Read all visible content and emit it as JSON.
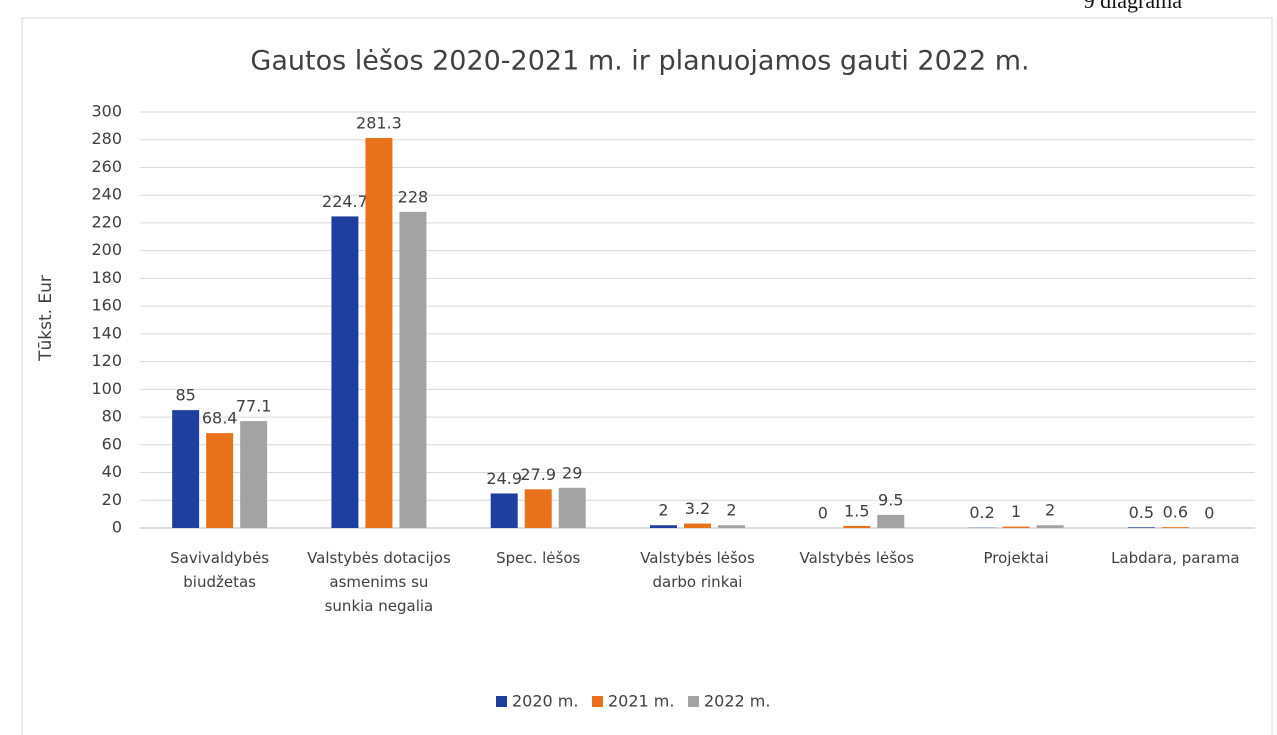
{
  "annotation": "9 diagrama",
  "chart_data": {
    "type": "bar",
    "title": "Gautos lėšos 2020-2021 m. ir planuojamos gauti 2022 m.",
    "y_label": "Tūkst. Eur",
    "categories": [
      "Savivaldybės biudžetas",
      "Valstybės dotacijos asmenims su sunkia negalia",
      "Spec. lėšos",
      "Valstybės lėšos darbo rinkai",
      "Valstybės lėšos",
      "Projektai",
      "Labdara, parama"
    ],
    "series": [
      {
        "name": "2020 m.",
        "color": "#1f3f9e",
        "values": [
          85,
          224.7,
          24.9,
          2,
          0,
          0.2,
          0.5
        ]
      },
      {
        "name": "2021 m.",
        "color": "#e8711c",
        "values": [
          68.4,
          281.3,
          27.9,
          3.2,
          1.5,
          1,
          0.6
        ]
      },
      {
        "name": "2022 m.",
        "color": "#a3a3a3",
        "values": [
          77.1,
          228,
          29,
          2,
          9.5,
          2,
          0
        ]
      }
    ],
    "ylim": [
      0,
      300
    ],
    "yticks": [
      0,
      20,
      40,
      60,
      80,
      100,
      120,
      140,
      160,
      180,
      200,
      220,
      240,
      260,
      280,
      300
    ],
    "grid": true,
    "legend": "bottom"
  }
}
